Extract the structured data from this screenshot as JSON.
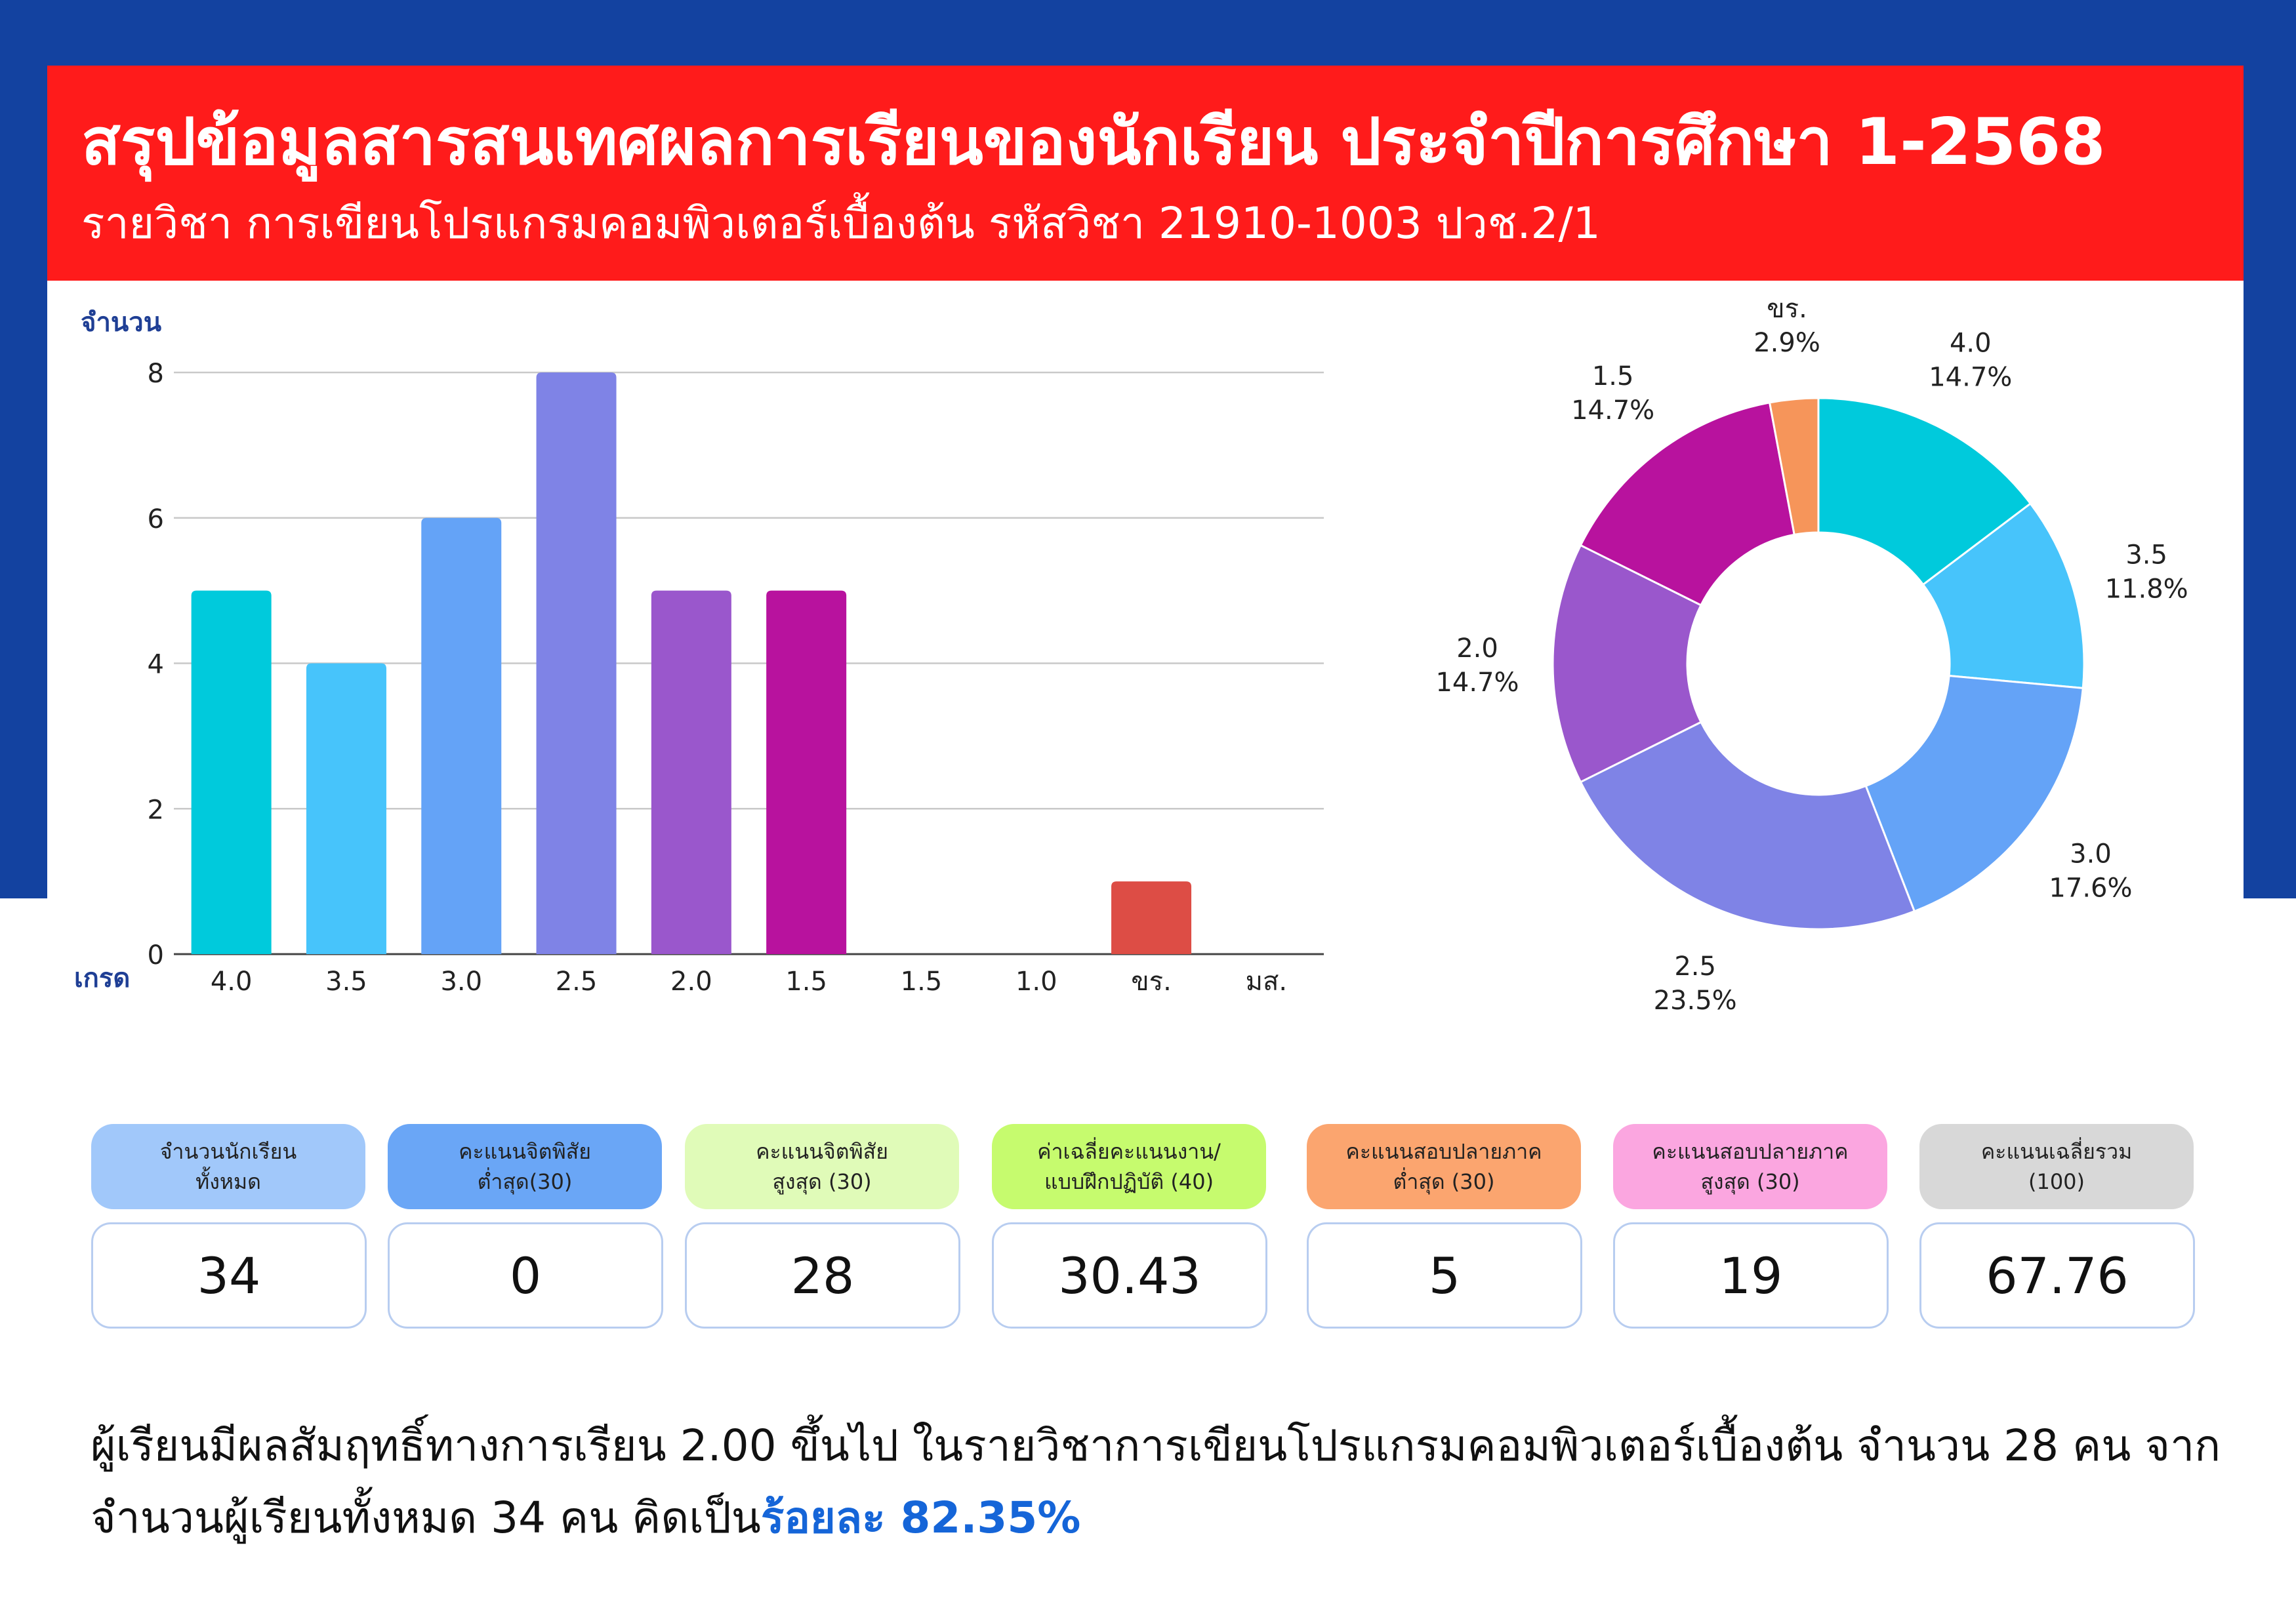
{
  "header": {
    "title": "สรุปข้อมูลสารสนเทศผลการเรียนของนักเรียน ประจำปีการศึกษา 1-2568",
    "subtitle": "รายวิชา การเขียนโปรแกรมคอมพิวเตอร์เบื้องต้น รหัสวิชา 21910-1003  ปวช.2/1"
  },
  "chart_data": [
    {
      "type": "bar",
      "ylabel": "จำนวน",
      "xlabel": "เกรด",
      "ylim": [
        0,
        8
      ],
      "yticks": [
        0,
        2,
        4,
        6,
        8
      ],
      "grid": true,
      "categories": [
        "4.0",
        "3.5",
        "3.0",
        "2.5",
        "2.0",
        "1.5",
        "1.5",
        "1.0",
        "ขร.",
        "มส."
      ],
      "values": [
        5,
        4,
        6,
        8,
        5,
        5,
        0,
        0,
        1,
        0
      ],
      "colors": [
        "#00cadc",
        "#47c4fb",
        "#64a3f7",
        "#7f83e6",
        "#9a57cc",
        "#b8129e",
        "#cccccc",
        "#cccccc",
        "#dd4d45",
        "#cccccc"
      ]
    },
    {
      "type": "pie",
      "donut": true,
      "slices": [
        {
          "label": "4.0",
          "percent": "14.7%",
          "value": 5,
          "color": "#00cadc"
        },
        {
          "label": "3.5",
          "percent": "11.8%",
          "value": 4,
          "color": "#47c4fb"
        },
        {
          "label": "3.0",
          "percent": "17.6%",
          "value": 6,
          "color": "#64a3f7"
        },
        {
          "label": "2.5",
          "percent": "23.5%",
          "value": 8,
          "color": "#7f83e6"
        },
        {
          "label": "2.0",
          "percent": "14.7%",
          "value": 5,
          "color": "#9a57cc"
        },
        {
          "label": "1.5",
          "percent": "14.7%",
          "value": 5,
          "color": "#b8129e"
        },
        {
          "label": "ขร.",
          "percent": "2.9%",
          "value": 1,
          "color": "#f6955a"
        }
      ]
    }
  ],
  "cards": [
    {
      "label": "จำนวนนักเรียน\nทั้งหมด",
      "value": "34",
      "color": "#a1c8fa"
    },
    {
      "label": "คะแนนจิตพิสัย\nต่ำสุด(30)",
      "value": "0",
      "color": "#6aa6f6"
    },
    {
      "label": "คะแนนจิตพิสัย\nสูงสุด (30)",
      "value": "28",
      "color": "#e0fbb8"
    },
    {
      "label": "ค่าเฉลี่ยคะแนนงาน/\nแบบฝึกปฏิบัติ (40)",
      "value": "30.43",
      "color": "#c6fb6e"
    },
    {
      "label": "คะแนนสอบปลายภาค\nต่ำสุด (30)",
      "value": "5",
      "color": "#fba56f"
    },
    {
      "label": "คะแนนสอบปลายภาค\nสูงสุด (30)",
      "value": "19",
      "color": "#fba6e0"
    },
    {
      "label": "คะแนนเฉลี่ยรวม\n(100)",
      "value": "67.76",
      "color": "#d8d8d8"
    }
  ],
  "summary": {
    "text": "ผู้เรียนมีผลสัมฤทธิ์ทางการเรียน 2.00 ขึ้นไป ในรายวิชาการเขียนโปรแกรมคอมพิวเตอร์เบื้องต้น จำนวน 28 คน จากจำนวนผู้เรียนทั้งหมด 34 คน คิดเป็น",
    "highlight": "ร้อยละ  82.35%"
  }
}
